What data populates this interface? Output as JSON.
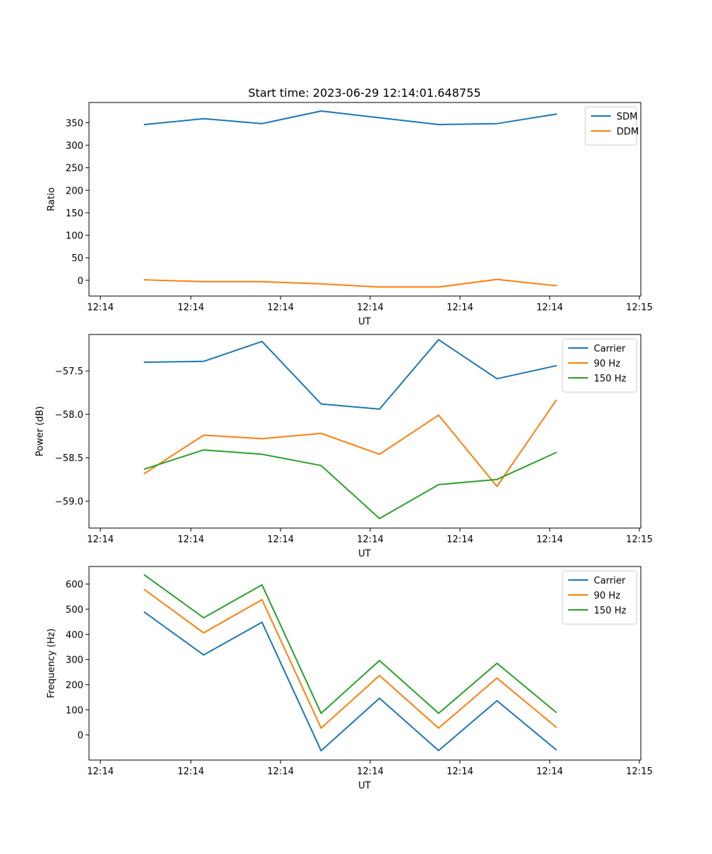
{
  "figure": {
    "title": "Start time: 2023-06-29 12:14:01.648755"
  },
  "colors": {
    "blue": "#1f77b4",
    "orange": "#ff7f0e",
    "green": "#2ca02c"
  },
  "chart_data": [
    {
      "type": "line",
      "title": "Start time: 2023-06-29 12:14:01.648755",
      "xlabel": "UT",
      "ylabel": "Ratio",
      "x_tick_labels": [
        "12:14",
        "12:14",
        "12:14",
        "12:14",
        "12:14",
        "12:14",
        "12:14",
        "12:15"
      ],
      "y_ticks": [
        0,
        50,
        100,
        150,
        200,
        250,
        300,
        350
      ],
      "ylim": [
        -35,
        395
      ],
      "legend": "top-right",
      "grid": false,
      "series": [
        {
          "name": "SDM",
          "color": "#1f77b4",
          "values": [
            346,
            359,
            348,
            376,
            361,
            346,
            348,
            369
          ]
        },
        {
          "name": "DDM",
          "color": "#ff7f0e",
          "values": [
            1,
            -3,
            -3,
            -8,
            -15,
            -15,
            2,
            -12
          ]
        }
      ]
    },
    {
      "type": "line",
      "title": "",
      "xlabel": "UT",
      "ylabel": "Power (dB)",
      "x_tick_labels": [
        "12:14",
        "12:14",
        "12:14",
        "12:14",
        "12:14",
        "12:14",
        "12:14",
        "12:15"
      ],
      "y_ticks": [
        -59.0,
        -58.5,
        -58.0,
        -57.5
      ],
      "y_tick_labels": [
        "−59.0",
        "−58.5",
        "−58.0",
        "−57.5"
      ],
      "ylim": [
        -59.31,
        -57.08
      ],
      "legend": "top-right",
      "grid": false,
      "series": [
        {
          "name": "Carrier",
          "color": "#1f77b4",
          "values": [
            -57.4,
            -57.39,
            -57.16,
            -57.88,
            -57.94,
            -57.14,
            -57.59,
            -57.44
          ]
        },
        {
          "name": "90 Hz",
          "color": "#ff7f0e",
          "values": [
            -58.68,
            -58.24,
            -58.28,
            -58.22,
            -58.46,
            -58.01,
            -58.83,
            -57.84
          ]
        },
        {
          "name": "150 Hz",
          "color": "#2ca02c",
          "values": [
            -58.63,
            -58.41,
            -58.46,
            -58.59,
            -59.2,
            -58.81,
            -58.75,
            -58.44
          ]
        }
      ]
    },
    {
      "type": "line",
      "title": "",
      "xlabel": "UT",
      "ylabel": "Frequency (Hz)",
      "x_tick_labels": [
        "12:14",
        "12:14",
        "12:14",
        "12:14",
        "12:14",
        "12:14",
        "12:14",
        "12:15"
      ],
      "y_ticks": [
        0,
        100,
        200,
        300,
        400,
        500,
        600
      ],
      "ylim": [
        -100,
        670
      ],
      "legend": "top-right",
      "grid": false,
      "series": [
        {
          "name": "Carrier",
          "color": "#1f77b4",
          "values": [
            488,
            318,
            448,
            -63,
            146,
            -62,
            136,
            -59
          ]
        },
        {
          "name": "90 Hz",
          "color": "#ff7f0e",
          "values": [
            578,
            406,
            538,
            27,
            236,
            27,
            226,
            31
          ]
        },
        {
          "name": "150 Hz",
          "color": "#2ca02c",
          "values": [
            636,
            466,
            597,
            86,
            296,
            86,
            285,
            90
          ]
        }
      ]
    }
  ]
}
